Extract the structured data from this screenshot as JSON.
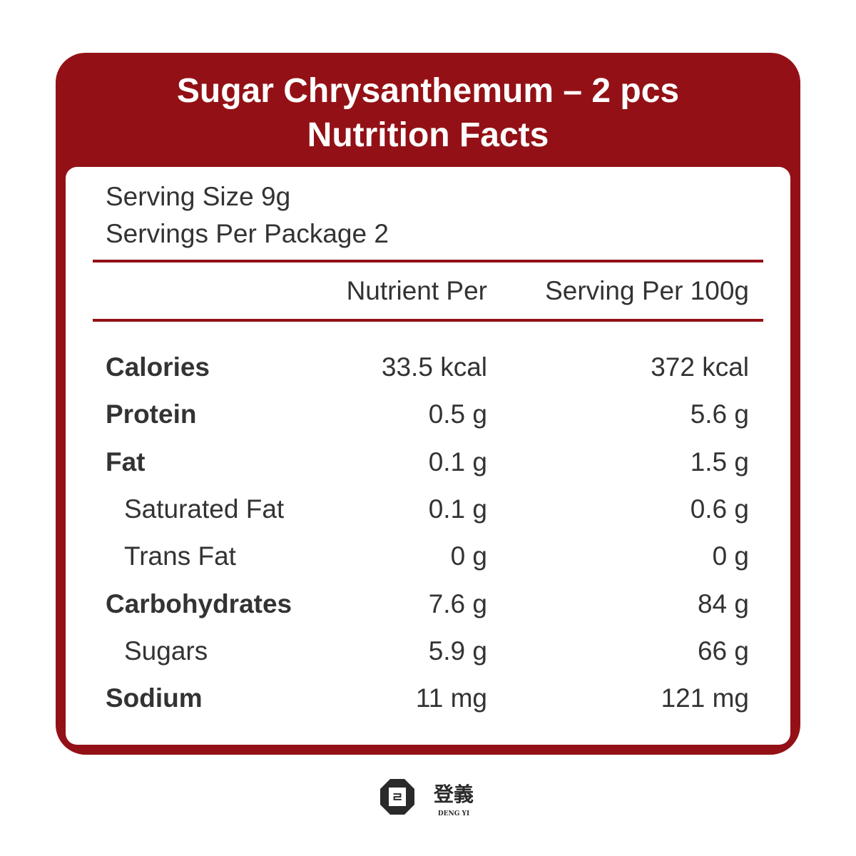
{
  "header": {
    "title_line1": "Sugar Chrysanthemum – 2 pcs",
    "title_line2": "Nutrition Facts"
  },
  "serving": {
    "size": "Serving Size 9g",
    "per_package": "Servings Per Package 2"
  },
  "table": {
    "columns": [
      "Nutrient Per",
      "Serving Per 100g"
    ],
    "rows": [
      [
        "Calories",
        "33.5 kcal",
        "372 kcal"
      ],
      [
        "Protein",
        "0.5 g",
        "5.6 g"
      ],
      [
        "Fat",
        "0.1 g",
        "1.5 g"
      ],
      [
        "Saturated Fat",
        "0.1 g",
        "0.6 g"
      ],
      [
        "Trans Fat",
        "0 g",
        "0 g"
      ],
      [
        "Carbohydrates",
        "7.6 g",
        "84 g"
      ],
      [
        "Sugars",
        "5.9 g",
        "66 g"
      ],
      [
        "Sodium",
        "11 mg",
        "121 mg"
      ]
    ]
  },
  "logo": {
    "chinese": "登義",
    "english": "DENG YI"
  }
}
